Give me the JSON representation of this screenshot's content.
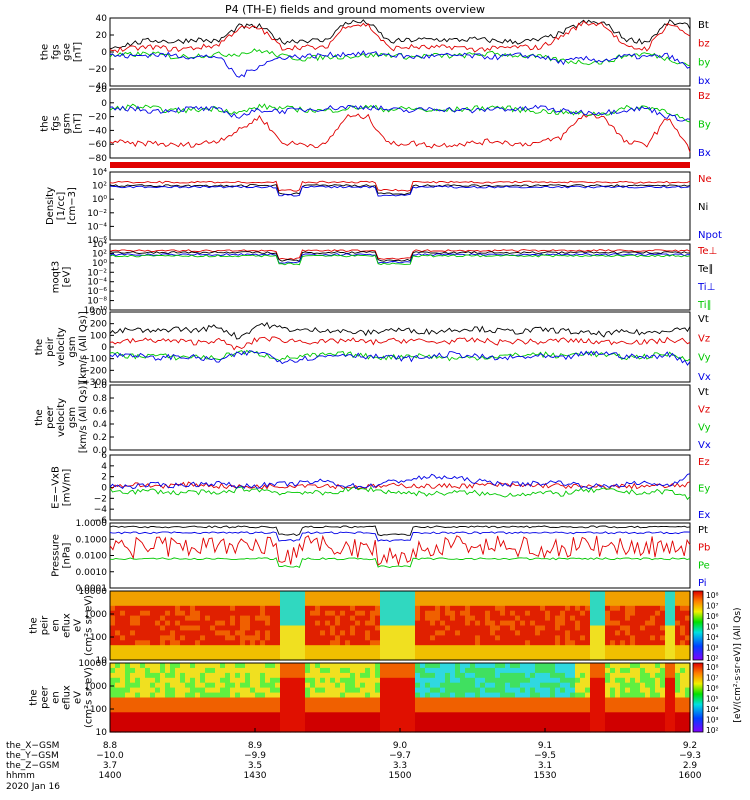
{
  "title": "P4 (TH-E) fields and ground moments overview",
  "colors": {
    "black": "#000000",
    "red": "#e00000",
    "green": "#00c800",
    "blue": "#0000e6"
  },
  "panels": [
    {
      "id": "fgs",
      "ylabel": [
        "the",
        "fgs",
        "gse",
        "[nT]"
      ],
      "ticks": [
        {
          "v": 40,
          "t": "40"
        },
        {
          "v": 20,
          "t": "20"
        },
        {
          "v": 0,
          "t": "0"
        },
        {
          "v": -20,
          "t": "−20"
        },
        {
          "v": -40,
          "t": "−40"
        }
      ],
      "legend": [
        {
          "t": "Bt",
          "c": "black"
        },
        {
          "t": "bz",
          "c": "red"
        },
        {
          "t": "by",
          "c": "green"
        },
        {
          "t": "bx",
          "c": "blue"
        }
      ]
    },
    {
      "id": "fgs_gsm",
      "ylabel": [
        "the",
        "fgs",
        "gsm",
        "[nT]"
      ],
      "ticks": [
        {
          "v": 20,
          "t": "20"
        },
        {
          "v": 0,
          "t": "0"
        },
        {
          "v": -20,
          "t": "−20"
        },
        {
          "v": -40,
          "t": "−40"
        },
        {
          "v": -60,
          "t": "−60"
        },
        {
          "v": -80,
          "t": "−80"
        }
      ],
      "legend": [
        {
          "t": "Bz",
          "c": "red"
        },
        {
          "t": "By",
          "c": "green"
        },
        {
          "t": "Bx",
          "c": "blue"
        }
      ]
    },
    {
      "id": "density",
      "ylabel": [
        "Density",
        "[1/cc]",
        "[cm−3]"
      ],
      "ticks": [
        {
          "t": "10⁴"
        },
        {
          "t": "10²"
        },
        {
          "t": "10⁰"
        },
        {
          "t": "10⁻²"
        },
        {
          "t": "10⁻⁴"
        },
        {
          "t": "10⁻⁶"
        }
      ],
      "legend": [
        {
          "t": "Ne",
          "c": "red"
        },
        {
          "t": "Ni",
          "c": "black"
        },
        {
          "t": "Npot",
          "c": "blue"
        }
      ]
    },
    {
      "id": "temp",
      "ylabel": [
        "moqt3",
        "[eV]"
      ],
      "ticks": [
        {
          "t": "10⁴"
        },
        {
          "t": "10²"
        },
        {
          "t": "10⁰"
        },
        {
          "t": "10⁻²"
        },
        {
          "t": "10⁻⁴"
        },
        {
          "t": "10⁻⁶"
        },
        {
          "t": "10⁻⁸"
        },
        {
          "t": "10⁻¹⁰"
        }
      ],
      "legend": [
        {
          "t": "Te⊥",
          "c": "red"
        },
        {
          "t": "Te∥",
          "c": "black"
        },
        {
          "t": "Ti⊥",
          "c": "blue"
        },
        {
          "t": "Ti∥",
          "c": "green"
        }
      ]
    },
    {
      "id": "vel",
      "ylabel": [
        "the",
        "peir",
        "velocity",
        "gsm",
        "[km/s (All Qs)]"
      ],
      "ticks": [
        {
          "v": 300,
          "t": "300"
        },
        {
          "v": 200,
          "t": "200"
        },
        {
          "v": 100,
          "t": "100"
        },
        {
          "v": 0,
          "t": "0"
        },
        {
          "v": -100,
          "t": "−100"
        },
        {
          "v": -200,
          "t": "−200"
        },
        {
          "v": -300,
          "t": "−300"
        }
      ],
      "legend": [
        {
          "t": "Vt",
          "c": "black"
        },
        {
          "t": "Vz",
          "c": "red"
        },
        {
          "t": "Vy",
          "c": "green"
        },
        {
          "t": "Vx",
          "c": "blue"
        }
      ]
    },
    {
      "id": "vel_e",
      "ylabel": [
        "the",
        "peer",
        "velocity",
        "gsm",
        "[km/s (All Qs)]"
      ],
      "ticks": [
        {
          "v": 1.0,
          "t": "1.0"
        },
        {
          "v": 0.8,
          "t": "0.8"
        },
        {
          "v": 0.6,
          "t": "0.6"
        },
        {
          "v": 0.4,
          "t": "0.4"
        },
        {
          "v": 0.2,
          "t": "0.2"
        },
        {
          "v": 0.0,
          "t": "0.0"
        }
      ],
      "legend": [
        {
          "t": "Vt",
          "c": "black"
        },
        {
          "t": "Vz",
          "c": "red"
        },
        {
          "t": "Vy",
          "c": "green"
        },
        {
          "t": "Vx",
          "c": "blue"
        }
      ]
    },
    {
      "id": "efield",
      "ylabel": [
        "E=−VxB",
        "[mV/m]"
      ],
      "ticks": [
        {
          "v": 6,
          "t": "6"
        },
        {
          "v": 4,
          "t": "4"
        },
        {
          "v": 2,
          "t": "2"
        },
        {
          "v": 0,
          "t": "0"
        },
        {
          "v": -2,
          "t": "−2"
        },
        {
          "v": -4,
          "t": "−4"
        },
        {
          "v": -6,
          "t": "−6"
        }
      ],
      "legend": [
        {
          "t": "Ez",
          "c": "red"
        },
        {
          "t": "Ey",
          "c": "green"
        },
        {
          "t": "Ex",
          "c": "blue"
        }
      ]
    },
    {
      "id": "pressure",
      "ylabel": [
        "Pressure",
        "[nPa]"
      ],
      "ticks": [
        {
          "t": "1.0000"
        },
        {
          "t": "0.1000"
        },
        {
          "t": "0.0100"
        },
        {
          "t": "0.0010"
        },
        {
          "t": "0.0001"
        }
      ],
      "legend": [
        {
          "t": "Pt",
          "c": "black"
        },
        {
          "t": "Pb",
          "c": "red"
        },
        {
          "t": "Pe",
          "c": "green"
        },
        {
          "t": "Pi",
          "c": "blue"
        }
      ]
    },
    {
      "id": "peir",
      "ylabel": [
        "the",
        "peir",
        "en",
        "eflux",
        "eV",
        "(cm²s sr eV)"
      ],
      "ticks": [
        {
          "t": "10000"
        },
        {
          "t": "1000"
        },
        {
          "t": "100"
        },
        {
          "t": "10"
        }
      ],
      "legend": []
    },
    {
      "id": "peer",
      "ylabel": [
        "the",
        "peer",
        "en",
        "eflux",
        "eV",
        "(cm²s sr eV)"
      ],
      "ticks": [
        {
          "t": "10000"
        },
        {
          "t": "1000"
        },
        {
          "t": "100"
        },
        {
          "t": "10"
        }
      ],
      "legend": []
    }
  ],
  "colorbar": {
    "ticks": [
      "10⁸",
      "10⁷",
      "10⁶",
      "10⁵",
      "10⁴",
      "10³",
      "10²"
    ],
    "label": "[eV/(cm²·s·sr·eV)] (All Qs)"
  },
  "x_axis": {
    "row_labels": [
      "the_X−GSM",
      "the_Y−GSM",
      "the_Z−GSM",
      "hhmm"
    ],
    "date": "2020 Jan 16",
    "ticks": [
      {
        "X": "8.8",
        "Y": "−10.0",
        "Z": "3.7",
        "hhmm": "1400"
      },
      {
        "X": "8.9",
        "Y": "−9.9",
        "Z": "3.5",
        "hhmm": "1430"
      },
      {
        "X": "9.0",
        "Y": "−9.7",
        "Z": "3.3",
        "hhmm": "1500"
      },
      {
        "X": "9.1",
        "Y": "−9.5",
        "Z": "3.1",
        "hhmm": "1530"
      },
      {
        "X": "9.2",
        "Y": "−9.3",
        "Z": "2.9",
        "hhmm": "1600"
      }
    ]
  },
  "chart_data": {
    "type": "line",
    "title": "P4 (TH-E) fields and ground moments overview",
    "x_time_range": [
      "1400",
      "1600"
    ],
    "series": [
      {
        "panel": "fgs",
        "name": "Bt",
        "values": [
          5,
          10,
          14,
          12,
          15,
          12,
          30,
          30,
          12,
          14,
          13,
          35,
          35,
          12,
          14,
          15,
          14,
          15,
          13,
          12,
          14,
          22,
          35,
          34,
          15,
          12,
          35,
          30
        ]
      },
      {
        "panel": "fgs",
        "name": "bz",
        "values": [
          2,
          4,
          6,
          3,
          5,
          8,
          28,
          28,
          5,
          6,
          4,
          32,
          32,
          4,
          6,
          5,
          6,
          3,
          4,
          6,
          5,
          18,
          34,
          33,
          5,
          4,
          34,
          20
        ]
      },
      {
        "panel": "fgs",
        "name": "by",
        "values": [
          -5,
          -3,
          -2,
          -6,
          -4,
          -3,
          -2,
          2,
          -5,
          -8,
          -6,
          -5,
          -4,
          -3,
          -6,
          -4,
          -5,
          -3,
          -2,
          -4,
          -6,
          -10,
          -12,
          -12,
          -4,
          -2,
          -8,
          -15
        ]
      },
      {
        "panel": "fgs",
        "name": "bx",
        "values": [
          -4,
          -5,
          -3,
          -4,
          -6,
          -5,
          -30,
          -15,
          -6,
          -5,
          -4,
          -2,
          -2,
          -3,
          -6,
          -5,
          -4,
          -5,
          -6,
          -4,
          -5,
          -12,
          -8,
          -10,
          -5,
          -6,
          -4,
          -20
        ]
      },
      {
        "panel": "fgs_gsm",
        "name": "Bz",
        "values": [
          -55,
          -60,
          -58,
          -62,
          -60,
          -55,
          -40,
          -20,
          -58,
          -60,
          -62,
          -20,
          -20,
          -60,
          -58,
          -62,
          -60,
          -58,
          -55,
          -60,
          -58,
          -50,
          -18,
          -20,
          -58,
          -60,
          -20,
          -70
        ]
      },
      {
        "panel": "fgs_gsm",
        "name": "By",
        "values": [
          -10,
          -5,
          -8,
          -12,
          -10,
          -8,
          -15,
          -5,
          -8,
          -10,
          -12,
          -8,
          -6,
          -10,
          -8,
          -12,
          -10,
          -8,
          -6,
          -10,
          -12,
          -14,
          -16,
          -16,
          -8,
          -6,
          -12,
          -30
        ]
      },
      {
        "panel": "fgs_gsm",
        "name": "Bx",
        "values": [
          -10,
          -8,
          -12,
          -10,
          -8,
          -10,
          -20,
          -10,
          -12,
          -10,
          -8,
          -6,
          -6,
          -10,
          -12,
          -8,
          -10,
          -12,
          -8,
          -10,
          -6,
          -12,
          -14,
          -14,
          -10,
          -8,
          -20,
          -25
        ]
      },
      {
        "panel": "vel",
        "name": "Vt",
        "values": [
          120,
          150,
          130,
          160,
          140,
          180,
          80,
          200,
          160,
          140,
          150,
          130,
          120,
          150,
          140,
          130,
          150,
          160,
          140,
          130,
          150,
          140,
          120,
          110,
          130,
          120,
          150,
          160
        ]
      },
      {
        "panel": "vel",
        "name": "Vz",
        "values": [
          40,
          50,
          60,
          50,
          40,
          60,
          -20,
          80,
          60,
          50,
          40,
          60,
          40,
          50,
          60,
          40,
          50,
          60,
          40,
          50,
          40,
          60,
          50,
          40,
          50,
          40,
          60,
          50
        ]
      },
      {
        "panel": "vel",
        "name": "Vy",
        "values": [
          -60,
          -80,
          -70,
          -90,
          -80,
          -100,
          -40,
          -60,
          -100,
          -80,
          -70,
          -60,
          -80,
          -90,
          -70,
          -80,
          -100,
          -90,
          -80,
          -70,
          -60,
          -80,
          -50,
          -70,
          -90,
          -80,
          -60,
          -100
        ]
      },
      {
        "panel": "vel",
        "name": "Vx",
        "values": [
          -80,
          -60,
          -100,
          -80,
          -90,
          -120,
          -60,
          -40,
          -120,
          -100,
          -80,
          -60,
          -80,
          -90,
          -100,
          -80,
          -60,
          -80,
          -100,
          -90,
          -80,
          -100,
          -60,
          -50,
          -80,
          -90,
          -60,
          -140
        ]
      },
      {
        "panel": "efield",
        "name": "Ez",
        "values": [
          0.2,
          0.5,
          0.3,
          0.4,
          0.6,
          0.3,
          0.1,
          0.2,
          0.3,
          0.5,
          0.4,
          0.1,
          0.1,
          0.3,
          0.4,
          0.2,
          0.3,
          0.4,
          0.5,
          0.3,
          0.4,
          0.3,
          0.1,
          0.1,
          0.2,
          0.3,
          0.2,
          0.6
        ]
      },
      {
        "panel": "efield",
        "name": "Ey",
        "values": [
          -0.5,
          -0.8,
          -0.6,
          -1.0,
          -0.8,
          -1.2,
          -0.3,
          -0.4,
          -1.0,
          -0.8,
          -1.2,
          -0.4,
          -0.3,
          -0.8,
          -1.0,
          -1.2,
          -0.9,
          -1.0,
          -1.4,
          -1.2,
          -1.0,
          -1.2,
          -0.6,
          -0.5,
          -0.8,
          -1.0,
          -0.6,
          -2.0
        ]
      },
      {
        "panel": "efield",
        "name": "Ex",
        "values": [
          0.3,
          0.2,
          0.5,
          0.4,
          0.6,
          0.8,
          0.2,
          0.4,
          0.6,
          0.8,
          1.2,
          0.3,
          0.2,
          1.0,
          1.5,
          2.0,
          1.8,
          1.2,
          0.8,
          0.6,
          0.8,
          1.0,
          0.3,
          0.2,
          0.6,
          0.8,
          0.4,
          2.5
        ]
      }
    ]
  }
}
